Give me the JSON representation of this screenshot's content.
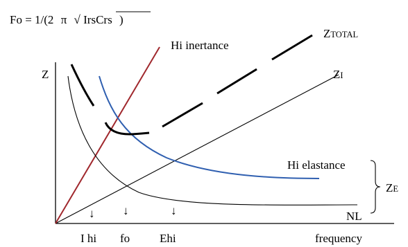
{
  "formula": {
    "lead": "Fo = 1/(2",
    "pi": "π",
    "radical": "√",
    "under_root": "IrsCrs",
    "close": ")"
  },
  "labels": {
    "hi_inertance": "Hi inertance",
    "z_total_big": "Z",
    "z_total_small": "TOTAL",
    "z_axis": "Z",
    "z_i_big": "Z",
    "z_i_small": "I",
    "hi_elastance": "Hi elastance",
    "z_e_big": "Z",
    "z_e_small": "E",
    "nl": "NL",
    "frequency": "frequency"
  },
  "markers": {
    "i_hi": "I hi",
    "fo": "fo",
    "e_hi": "Ehi",
    "arrow_glyph": "↓"
  },
  "colors": {
    "inertance_line": "#a0282d",
    "elastance_curve": "#2f5fb0",
    "black": "#000000"
  }
}
